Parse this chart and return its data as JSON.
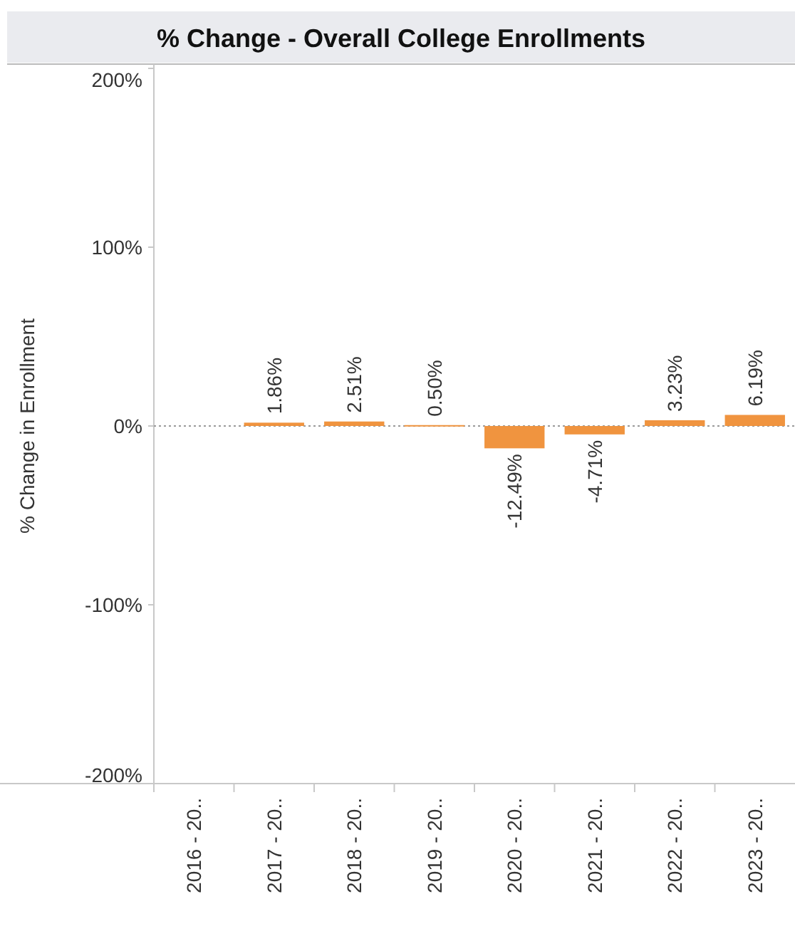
{
  "chart_data": {
    "type": "bar",
    "title": "% Change - Overall College Enrollments",
    "ylabel": "% Change in Enrollment",
    "categories": [
      "2016 - 20..",
      "2017 - 20..",
      "2018 - 20..",
      "2019 - 20..",
      "2020 - 20..",
      "2021 - 20..",
      "2022 - 20..",
      "2023 - 20.."
    ],
    "values": [
      null,
      1.86,
      2.51,
      0.5,
      -12.49,
      -4.71,
      3.23,
      6.19
    ],
    "value_labels": [
      null,
      "1.86%",
      "2.51%",
      "0.50%",
      "-12.49%",
      "-4.71%",
      "3.23%",
      "6.19%"
    ],
    "color": "#f0943f",
    "ylim": [
      -200,
      200
    ],
    "yticks": [
      {
        "value": -200,
        "label": "-200%"
      },
      {
        "value": -100,
        "label": "-100%"
      },
      {
        "value": 0,
        "label": "0%"
      },
      {
        "value": 100,
        "label": "100%"
      },
      {
        "value": 200,
        "label": "200%"
      }
    ],
    "ref_lines": [
      {
        "axis": "y",
        "value": 0,
        "line_style": "dotted",
        "color": "#9a9a9a"
      }
    ],
    "grid": false
  }
}
